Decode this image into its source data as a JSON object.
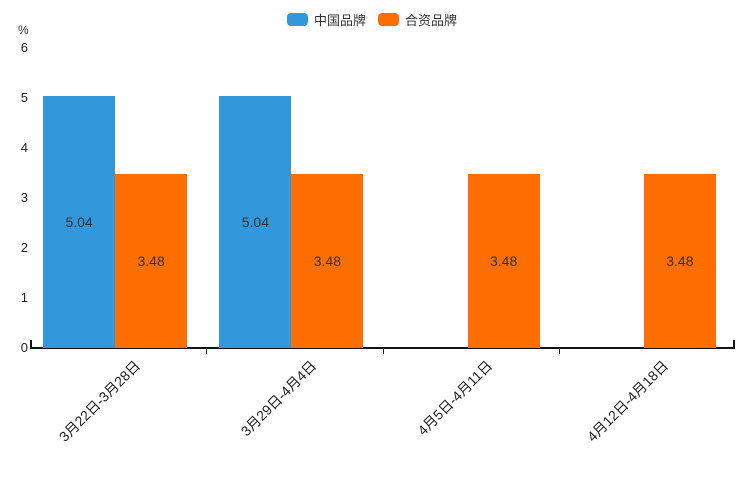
{
  "chart_data": {
    "type": "bar",
    "title": "",
    "xlabel": "",
    "ylabel": "%",
    "categories": [
      "3月22日-3月28日",
      "3月29日-4月4日",
      "4月5日-4月11日",
      "4月12日-4月18日"
    ],
    "series": [
      {
        "name": "中国品牌",
        "color": "#3398db",
        "values": [
          5.04,
          5.04,
          0,
          0
        ]
      },
      {
        "name": "合资品牌",
        "color": "#ff6e00",
        "values": [
          3.48,
          3.48,
          3.48,
          3.48
        ]
      }
    ],
    "value_label_decimals": 2,
    "ylim": [
      0,
      6
    ],
    "y_ticks": [
      0,
      1,
      2,
      3,
      4,
      5,
      6
    ],
    "legend_position": "top",
    "grid": false,
    "background_color": "#ffffff",
    "axis_color": "#111111",
    "label_color": "#222222"
  }
}
